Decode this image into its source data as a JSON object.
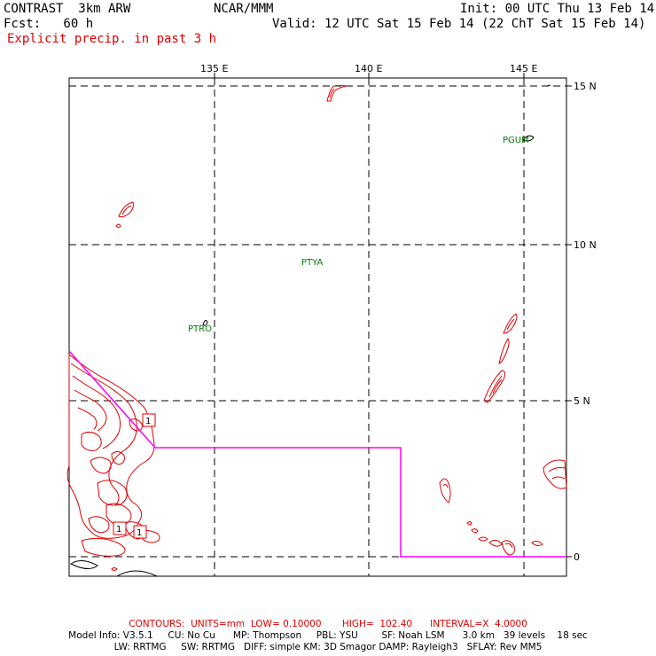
{
  "header": {
    "model": "CONTRAST  3km ARW",
    "org": "NCAR/MMM",
    "init": "Init: 00 UTC Thu 13 Feb 14",
    "fcst": "Fcst:   60 h",
    "valid": "Valid: 12 UTC Sat 15 Feb 14 (22 ChT Sat 15 Feb 14)",
    "field": "Explicit precip. in past 3 h"
  },
  "axes": {
    "lon_labels": [
      "135 E",
      "140 E",
      "145 E"
    ],
    "lat_labels": [
      "15 N",
      "10 N",
      "5 N",
      "0"
    ]
  },
  "stations": [
    "PGUM",
    "PTYA",
    "PTRO"
  ],
  "contour_labels": [
    "1",
    "1",
    "1"
  ],
  "footer": {
    "contours": "CONTOURS:  UNITS=mm  LOW= 0.10000       HIGH=  102.40      INTERVAL=X  4.0000",
    "model_info_1": "Model Info: V3.5.1     CU: No Cu      MP: Thompson     PBL: YSU        SF: Noah LSM      3.0 km   39 levels    18 sec",
    "model_info_2": "LW: RRTMG     SW: RRTMG   DIFF: simple KM: 3D Smagor DAMP: Rayleigh3   SFLAY: Rev MM5"
  },
  "colors": {
    "contour": "#e00000",
    "boundary": "#ff00ff",
    "station": "#008000",
    "grid": "#000000"
  }
}
